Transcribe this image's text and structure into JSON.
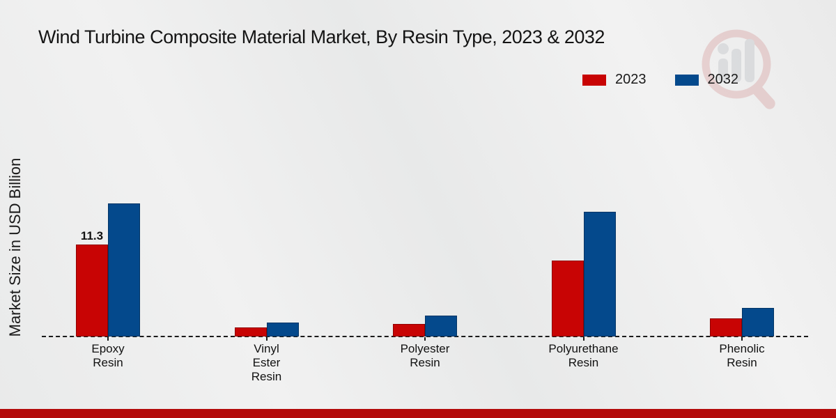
{
  "page": {
    "title": "Wind Turbine Composite Material Market, By Resin Type, 2023 & 2032",
    "background_color": "#ececec",
    "footer_bar_color": "#b30a0a"
  },
  "legend": {
    "position": "top-right",
    "items": [
      {
        "label": "2023",
        "color": "#c80404"
      },
      {
        "label": "2032",
        "color": "#04498c"
      }
    ]
  },
  "watermark": {
    "name": "magnifier-bar-chart-logo",
    "ring_color": "#c96a6a",
    "bars_color": "#8f959d"
  },
  "chart_data": {
    "type": "bar",
    "title": "Wind Turbine Composite Material Market, By Resin Type, 2023 & 2032",
    "ylabel": "Market Size in USD Billion",
    "xlabel": "",
    "categories": [
      "Epoxy Resin",
      "Vinyl Ester Resin",
      "Polyester Resin",
      "Polyurethane Resin",
      "Phenolic Resin"
    ],
    "category_display_lines": [
      "Epoxy\nResin",
      "Vinyl\nEster\nResin",
      "Polyester\nResin",
      "Polyurethane\nResin",
      "Phenolic\nResin"
    ],
    "series": [
      {
        "name": "2023",
        "color": "#c80404",
        "values": [
          11.3,
          1.1,
          1.5,
          9.3,
          2.2
        ],
        "data_labels": [
          "11.3",
          "",
          "",
          "",
          ""
        ]
      },
      {
        "name": "2032",
        "color": "#04498c",
        "values": [
          16.3,
          1.7,
          2.6,
          15.3,
          3.5
        ],
        "data_labels": [
          "",
          "",
          "",
          "",
          ""
        ]
      }
    ],
    "ylim": [
      0,
      18
    ],
    "grid": false,
    "axis_line_style": "dashed",
    "legend_position": "top-right",
    "annotated_values": [
      {
        "series": "2023",
        "category": "Epoxy Resin",
        "text": "11.3"
      }
    ]
  }
}
